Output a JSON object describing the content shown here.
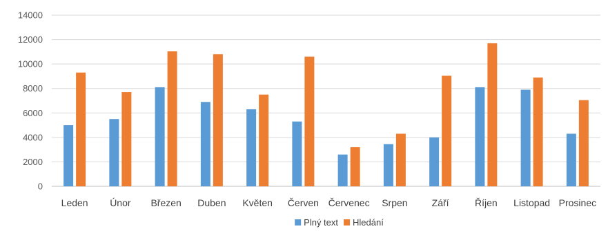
{
  "chart_data": {
    "type": "bar",
    "title": "",
    "xlabel": "",
    "ylabel": "",
    "ylim": [
      0,
      14000
    ],
    "yticks": [
      0,
      2000,
      4000,
      6000,
      8000,
      10000,
      12000,
      14000
    ],
    "grid": true,
    "legend_position": "bottom",
    "categories": [
      "Leden",
      "Únor",
      "Březen",
      "Duben",
      "Květen",
      "Červen",
      "Červenec",
      "Srpen",
      "Září",
      "Říjen",
      "Listopad",
      "Prosinec"
    ],
    "series": [
      {
        "name": "Plný text",
        "color": "#5b9bd5",
        "values": [
          5000,
          5500,
          8100,
          6900,
          6300,
          5300,
          2600,
          3450,
          4000,
          8100,
          7900,
          4300
        ]
      },
      {
        "name": "Hledání",
        "color": "#ed7d31",
        "values": [
          9300,
          7700,
          11050,
          10800,
          7500,
          10600,
          3200,
          4300,
          9050,
          11700,
          8900,
          7050
        ]
      }
    ]
  }
}
